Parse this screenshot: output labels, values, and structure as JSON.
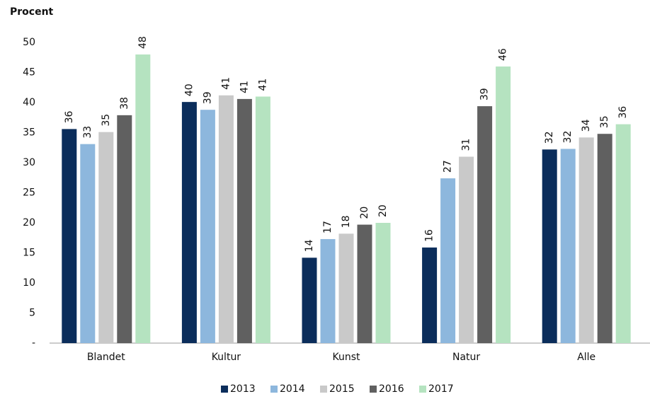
{
  "chart_data": {
    "type": "bar",
    "ylabel": "Procent",
    "categories": [
      "Blandet",
      "Kultur",
      "Kunst",
      "Natur",
      "Alle"
    ],
    "series": [
      {
        "name": "2013",
        "color": "#0b2d5b",
        "values": [
          35.6,
          40.1,
          14.2,
          15.9,
          32.2
        ],
        "value_labels": [
          "36",
          "40",
          "14",
          "16",
          "32"
        ]
      },
      {
        "name": "2014",
        "color": "#8db7dd",
        "values": [
          33.1,
          38.8,
          17.3,
          27.4,
          32.3
        ],
        "value_labels": [
          "33",
          "39",
          "17",
          "27",
          "32"
        ]
      },
      {
        "name": "2015",
        "color": "#c9c9c9",
        "values": [
          35.1,
          41.2,
          18.2,
          31.0,
          34.2
        ],
        "value_labels": [
          "35",
          "41",
          "18",
          "31",
          "34"
        ]
      },
      {
        "name": "2016",
        "color": "#606060",
        "values": [
          37.9,
          40.6,
          19.7,
          39.4,
          34.8
        ],
        "value_labels": [
          "38",
          "41",
          "20",
          "39",
          "35"
        ]
      },
      {
        "name": "2017",
        "color": "#b5e3c0",
        "values": [
          48.0,
          41.0,
          20.0,
          46.0,
          36.4
        ],
        "value_labels": [
          "48",
          "41",
          "20",
          "46",
          "36"
        ]
      }
    ],
    "ylim": [
      0,
      50
    ],
    "yticks": [
      {
        "value": 0,
        "label": "-"
      },
      5,
      10,
      15,
      20,
      25,
      30,
      35,
      40,
      45,
      50
    ],
    "grid": false,
    "legend": "bottom"
  }
}
